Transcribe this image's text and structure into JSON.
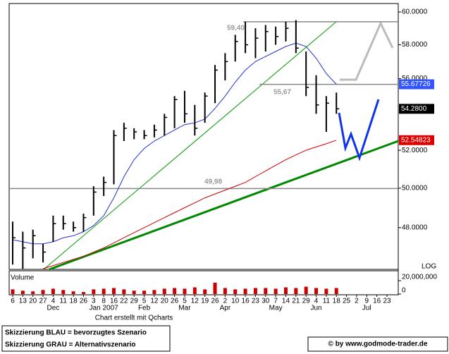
{
  "chart_data": {
    "type": "candlestick",
    "log": true,
    "scale_label": "LOG",
    "volume_label": "Volume",
    "credit": "Chart erstellt mit Qcharts",
    "notes": [
      "Skizzierung BLAU = bevorzugtes Szenario",
      "Skizzierung GRAU = Alternativszenario"
    ],
    "copyright": "© by www.godmode-trader.de",
    "categories": [
      "6",
      "13",
      "20",
      "27",
      "4",
      "11",
      "18",
      "26",
      "3",
      "8",
      "16",
      "22",
      "29",
      "5",
      "12",
      "20",
      "26",
      "5",
      "12",
      "19",
      "26",
      "2",
      "10",
      "16",
      "23",
      "30",
      "7",
      "14",
      "21",
      "29",
      "4",
      "11",
      "18",
      "25",
      "2",
      "9",
      "16",
      "23"
    ],
    "month_labels": [
      null,
      null,
      null,
      null,
      "Dec",
      null,
      null,
      null,
      null,
      "Jan 2007",
      null,
      null,
      null,
      "Feb",
      null,
      null,
      null,
      "Mar",
      null,
      null,
      null,
      "Apr",
      null,
      null,
      null,
      null,
      "May",
      null,
      null,
      null,
      "Jun",
      null,
      null,
      null,
      null,
      "Jul",
      null,
      null
    ],
    "high": [
      48.3,
      47.8,
      47.9,
      47.2,
      48.6,
      48.6,
      48.3,
      48.7,
      50.1,
      50.6,
      53.1,
      53.5,
      53.2,
      53.1,
      53.4,
      54.0,
      55.0,
      55.3,
      54.5,
      55.2,
      56.8,
      57.5,
      58.6,
      59.4,
      59.0,
      59.2,
      59.1,
      59.4,
      59.5,
      57.6,
      56.2,
      55.0,
      55.2,
      null,
      null,
      null,
      null,
      null
    ],
    "low": [
      46.2,
      46.0,
      46.5,
      46.3,
      47.3,
      47.9,
      47.8,
      47.8,
      48.6,
      49.6,
      50.2,
      52.5,
      52.6,
      52.6,
      52.7,
      52.8,
      53.2,
      53.5,
      52.8,
      53.5,
      54.6,
      55.9,
      57.0,
      57.5,
      57.2,
      57.6,
      58.0,
      58.2,
      57.5,
      55.0,
      54.0,
      53.0,
      54.0,
      null,
      null,
      null,
      null,
      null
    ],
    "close": [
      47.5,
      47.0,
      47.6,
      46.8,
      48.2,
      48.2,
      48.0,
      48.5,
      49.8,
      50.3,
      52.8,
      53.2,
      53.0,
      52.8,
      53.1,
      53.8,
      54.8,
      54.0,
      53.2,
      55.0,
      56.5,
      57.0,
      58.2,
      58.0,
      58.4,
      58.8,
      58.5,
      59.0,
      57.8,
      55.5,
      54.5,
      54.6,
      54.28,
      null,
      null,
      null,
      null,
      null
    ],
    "color": "#000000",
    "series": [
      {
        "name": "MA blue",
        "color": "#2233cc",
        "values": [
          47.4,
          47.3,
          47.2,
          47.2,
          47.3,
          47.5,
          47.6,
          47.8,
          48.1,
          48.6,
          49.5,
          50.6,
          51.5,
          52.1,
          52.5,
          52.8,
          53.1,
          53.4,
          53.5,
          53.7,
          54.3,
          55.0,
          55.8,
          56.5,
          57.0,
          57.3,
          57.6,
          57.9,
          58.1,
          57.9,
          57.2,
          56.3,
          55.67726,
          null,
          null,
          null,
          null,
          null
        ]
      },
      {
        "name": "MA red",
        "color": "#cc0000",
        "values": [
          null,
          null,
          null,
          46.0,
          46.15,
          46.3,
          46.45,
          46.6,
          46.8,
          47.0,
          47.25,
          47.5,
          47.75,
          48.0,
          48.25,
          48.5,
          48.75,
          49.0,
          49.25,
          49.5,
          49.7,
          49.9,
          50.1,
          50.3,
          50.6,
          50.9,
          51.2,
          51.5,
          51.75,
          52.0,
          52.18,
          52.35,
          52.54823,
          null,
          null,
          null,
          null,
          null
        ]
      }
    ],
    "last_values": [
      {
        "value": 55.67726,
        "label": "55.67726",
        "color": "#3355ff"
      },
      {
        "value": 54.28,
        "label": "54.2800",
        "color": "#000000"
      },
      {
        "value": 52.54823,
        "label": "52.54823",
        "color": "#dd0000"
      }
    ],
    "levels": [
      {
        "value": 59.4,
        "label": "59,40"
      },
      {
        "value": 55.67,
        "label": "55,67"
      },
      {
        "value": 49.98,
        "label": "49,98"
      }
    ],
    "ylim": [
      45.97,
      60.53
    ],
    "yticks": [
      {
        "value": 48,
        "label": "48.0000"
      },
      {
        "value": 50,
        "label": "50.0000"
      },
      {
        "value": 52,
        "label": "52.0000"
      },
      {
        "value": 56,
        "label": "56.0000"
      },
      {
        "value": 58,
        "label": "58.0000"
      },
      {
        "value": 60,
        "label": "60.0000"
      }
    ],
    "volume": [
      7000000,
      5000000,
      4000000,
      6000000,
      8000000,
      6000000,
      4000000,
      3000000,
      7000000,
      8000000,
      9000000,
      7000000,
      5000000,
      5000000,
      6000000,
      8000000,
      9000000,
      8000000,
      10000000,
      7000000,
      17000000,
      9000000,
      7000000,
      8000000,
      9000000,
      9000000,
      8000000,
      10000000,
      9000000,
      11000000,
      9000000,
      8000000,
      9000000,
      null,
      null,
      null,
      null,
      null
    ],
    "volume_color": "#cc0000",
    "volume_ylim": [
      0,
      20000000
    ],
    "volume_yticks": [
      {
        "value": 0,
        "label": "0"
      },
      {
        "value": 20000000,
        "label": "20,000,000"
      }
    ]
  }
}
